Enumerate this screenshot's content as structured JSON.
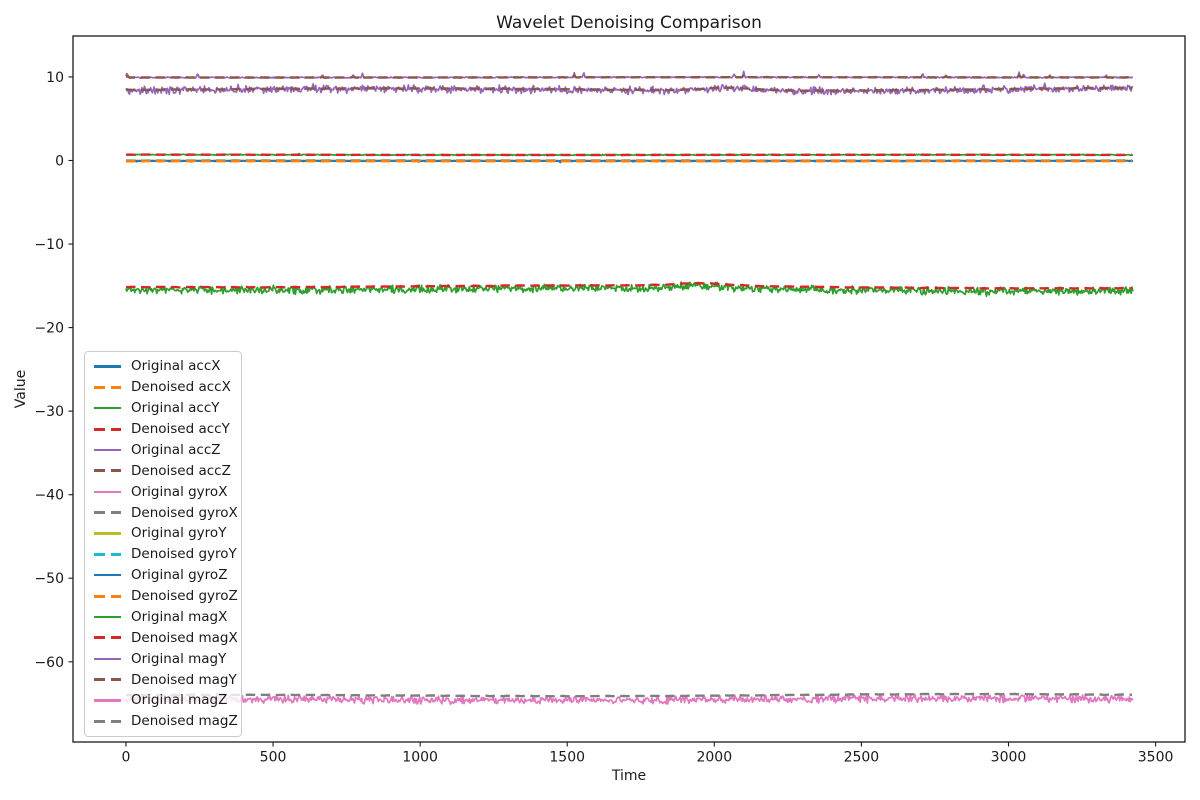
{
  "window": {
    "background": "#ffffff",
    "axes_edge_color": "#1a1a1a"
  },
  "chart_data": {
    "type": "line",
    "title": "Wavelet Denoising Comparison",
    "xlabel": "Time",
    "ylabel": "Value",
    "grid": false,
    "legend_position": "lower left",
    "n_points": 3427,
    "x_range": [
      0,
      3425
    ],
    "xlim": [
      -180,
      3600
    ],
    "ylim": [
      -69.6,
      14.9
    ],
    "x_ticks": [
      {
        "v": 0,
        "label": "0"
      },
      {
        "v": 500,
        "label": "500"
      },
      {
        "v": 1000,
        "label": "1000"
      },
      {
        "v": 1500,
        "label": "1500"
      },
      {
        "v": 2000,
        "label": "2000"
      },
      {
        "v": 2500,
        "label": "2500"
      },
      {
        "v": 3000,
        "label": "3000"
      },
      {
        "v": 3500,
        "label": "3500"
      }
    ],
    "y_ticks": [
      {
        "v": 10,
        "label": "10"
      },
      {
        "v": 0,
        "label": "0"
      },
      {
        "v": -10,
        "label": "−10"
      },
      {
        "v": -20,
        "label": "−20"
      },
      {
        "v": -30,
        "label": "−30"
      },
      {
        "v": -40,
        "label": "−40"
      },
      {
        "v": -50,
        "label": "−50"
      },
      {
        "v": -60,
        "label": "−60"
      }
    ],
    "series": [
      {
        "label": "Original accX",
        "group": "accX",
        "color": "#1f77b4",
        "style": "solid",
        "mean": -0.08,
        "noise": 0.035,
        "wander": 0.015,
        "spike_prob": 0.01,
        "spike_size": -0.3
      },
      {
        "label": "Denoised accX",
        "group": "accX",
        "color": "#ff7f0e",
        "style": "dashed",
        "mean": -0.08,
        "noise": 0.005,
        "wander": 0.015
      },
      {
        "label": "Original accY",
        "group": "accY",
        "color": "#2ca02c",
        "style": "solid",
        "mean": 0.68,
        "noise": 0.035,
        "wander": 0.015,
        "spike_prob": 0.01,
        "spike_size": 0.22
      },
      {
        "label": "Denoised accY",
        "group": "accY",
        "color": "#d62728",
        "style": "dashed",
        "mean": 0.68,
        "noise": 0.005,
        "wander": 0.015
      },
      {
        "label": "Original accZ",
        "group": "accZ",
        "color": "#9467bd",
        "style": "solid",
        "mean": 9.95,
        "noise": 0.04,
        "wander": 0.015,
        "spike_prob": 0.033,
        "spike_size": 0.75
      },
      {
        "label": "Denoised accZ",
        "group": "accZ",
        "color": "#8c564b",
        "style": "dashed",
        "mean": 9.95,
        "noise": 0.006,
        "wander": 0.015,
        "spike_prob": 0.033,
        "spike_size": 0.3
      },
      {
        "label": "Original gyroX",
        "group": "gyroX",
        "color": "#e377c2",
        "style": "solid",
        "mean": -0.01,
        "noise": 0.02,
        "wander": 0.01
      },
      {
        "label": "Denoised gyroX",
        "group": "gyroX",
        "color": "#7f7f7f",
        "style": "dashed",
        "mean": -0.01,
        "noise": 0.004,
        "wander": 0.01
      },
      {
        "label": "Original gyroY",
        "group": "gyroY",
        "color": "#bcbd22",
        "style": "solid",
        "mean": -0.02,
        "noise": 0.02,
        "wander": 0.01
      },
      {
        "label": "Denoised gyroY",
        "group": "gyroY",
        "color": "#17becf",
        "style": "dashed",
        "mean": -0.02,
        "noise": 0.004,
        "wander": 0.01
      },
      {
        "label": "Original gyroZ",
        "group": "gyroZ",
        "color": "#1f77b4",
        "style": "solid",
        "mean": -0.05,
        "noise": 0.02,
        "wander": 0.01
      },
      {
        "label": "Denoised gyroZ",
        "group": "gyroZ",
        "color": "#ff7f0e",
        "style": "dashed",
        "mean": -0.05,
        "noise": 0.004,
        "wander": 0.01
      },
      {
        "label": "Original magX",
        "group": "magX",
        "color": "#2ca02c",
        "style": "solid",
        "mean": -15.45,
        "noise": 0.27,
        "wander": 0.13,
        "spike_prob": 0.02,
        "spike_size": -0.5,
        "bump": {
          "t": 1950,
          "w": 90,
          "h": 0.3
        }
      },
      {
        "label": "Denoised magX",
        "group": "magX",
        "color": "#d62728",
        "style": "dashed",
        "mean": -15.12,
        "noise": 0.02,
        "wander": 0.13,
        "bump": {
          "t": 1950,
          "w": 90,
          "h": 0.3
        }
      },
      {
        "label": "Original magY",
        "group": "magY",
        "color": "#9467bd",
        "style": "solid",
        "mean": 8.5,
        "noise": 0.26,
        "wander": 0.14,
        "spike_prob": 0.02,
        "spike_size": 0.45,
        "bump": {
          "t": 2050,
          "w": 80,
          "h": 0.35
        }
      },
      {
        "label": "Denoised magY",
        "group": "magY",
        "color": "#8c564b",
        "style": "dashed",
        "mean": 8.56,
        "noise": 0.02,
        "wander": 0.14,
        "bump": {
          "t": 2050,
          "w": 80,
          "h": 0.35
        }
      },
      {
        "label": "Original magZ",
        "group": "magZ",
        "color": "#e377c2",
        "style": "solid",
        "mean": -64.55,
        "noise": 0.27,
        "wander": 0.12,
        "spike_prob": 0.015,
        "spike_size": -0.45
      },
      {
        "label": "Denoised magZ",
        "group": "magZ",
        "color": "#7f7f7f",
        "style": "dashed",
        "mean": -64.05,
        "noise": 0.02,
        "wander": 0.12
      }
    ]
  }
}
